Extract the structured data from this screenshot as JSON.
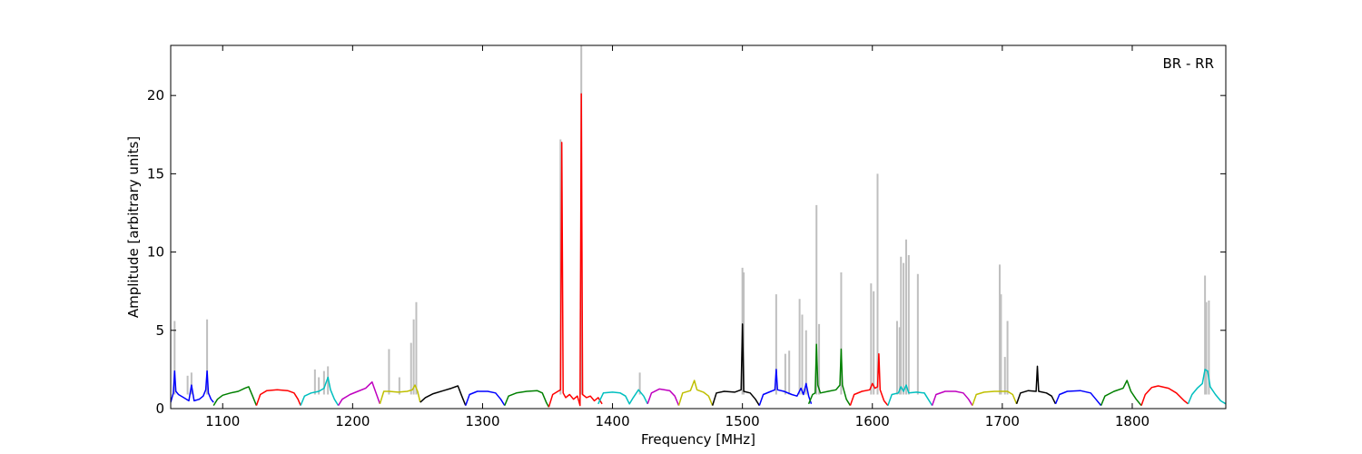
{
  "chart_data": {
    "type": "line",
    "title": "",
    "annotation": "BR - RR",
    "xlabel": "Frequency [MHz]",
    "ylabel": "Amplitude [arbitrary units]",
    "xlim": [
      1060,
      1872
    ],
    "ylim": [
      0,
      23.2
    ],
    "xticks": [
      1100,
      1200,
      1300,
      1400,
      1500,
      1600,
      1700,
      1800
    ],
    "yticks": [
      0,
      5,
      10,
      15,
      20
    ],
    "grid": false,
    "legend": "none",
    "background": {
      "name": "raw",
      "color": "#bfbfbf",
      "spikes": [
        [
          1063,
          5.6
        ],
        [
          1073,
          2.1
        ],
        [
          1076,
          2.3
        ],
        [
          1088,
          5.7
        ],
        [
          1171,
          2.5
        ],
        [
          1174,
          2.0
        ],
        [
          1178,
          2.4
        ],
        [
          1181,
          2.7
        ],
        [
          1228,
          3.8
        ],
        [
          1236,
          2.0
        ],
        [
          1245,
          4.2
        ],
        [
          1247,
          5.7
        ],
        [
          1249,
          6.8
        ],
        [
          1360,
          17.2
        ],
        [
          1376,
          23.2
        ],
        [
          1421,
          2.3
        ],
        [
          1500,
          9.0
        ],
        [
          1501,
          8.7
        ],
        [
          1526,
          7.3
        ],
        [
          1533,
          3.5
        ],
        [
          1536,
          3.7
        ],
        [
          1544,
          7.0
        ],
        [
          1546,
          6.0
        ],
        [
          1549,
          5.0
        ],
        [
          1557,
          13.0
        ],
        [
          1559,
          5.4
        ],
        [
          1576,
          8.7
        ],
        [
          1599,
          8.0
        ],
        [
          1601,
          7.5
        ],
        [
          1604,
          15.0
        ],
        [
          1619,
          5.6
        ],
        [
          1621,
          5.2
        ],
        [
          1622,
          9.7
        ],
        [
          1624,
          9.3
        ],
        [
          1626,
          10.8
        ],
        [
          1628,
          9.8
        ],
        [
          1635,
          8.6
        ],
        [
          1698,
          9.2
        ],
        [
          1699,
          7.3
        ],
        [
          1702,
          3.3
        ],
        [
          1704,
          5.6
        ],
        [
          1856,
          8.5
        ],
        [
          1857,
          6.8
        ],
        [
          1859,
          6.9
        ]
      ]
    },
    "series": [
      {
        "color": "#0000ff",
        "values": [
          [
            1060,
            0.4
          ],
          [
            1062,
            1.0
          ],
          [
            1063,
            2.4
          ],
          [
            1064,
            1.1
          ],
          [
            1066,
            0.9
          ],
          [
            1070,
            0.7
          ],
          [
            1074,
            0.5
          ],
          [
            1076,
            1.5
          ],
          [
            1078,
            0.5
          ],
          [
            1082,
            0.6
          ],
          [
            1085,
            0.8
          ],
          [
            1087,
            1.2
          ],
          [
            1088,
            2.4
          ],
          [
            1089,
            1.0
          ],
          [
            1091,
            0.6
          ],
          [
            1093,
            0.4
          ]
        ]
      },
      {
        "color": "#008000",
        "values": [
          [
            1093,
            0.2
          ],
          [
            1096,
            0.6
          ],
          [
            1100,
            0.85
          ],
          [
            1106,
            1.0
          ],
          [
            1112,
            1.1
          ],
          [
            1117,
            1.3
          ],
          [
            1120,
            1.4
          ],
          [
            1123,
            0.8
          ],
          [
            1126,
            0.2
          ]
        ]
      },
      {
        "color": "#ff0000",
        "values": [
          [
            1126,
            0.2
          ],
          [
            1129,
            0.9
          ],
          [
            1134,
            1.15
          ],
          [
            1142,
            1.2
          ],
          [
            1150,
            1.15
          ],
          [
            1155,
            1.0
          ],
          [
            1158,
            0.6
          ],
          [
            1160,
            0.2
          ]
        ]
      },
      {
        "color": "#00bfbf",
        "values": [
          [
            1160,
            0.2
          ],
          [
            1163,
            0.8
          ],
          [
            1168,
            1.0
          ],
          [
            1174,
            1.1
          ],
          [
            1178,
            1.3
          ],
          [
            1181,
            2.0
          ],
          [
            1183,
            1.2
          ],
          [
            1186,
            0.6
          ],
          [
            1189,
            0.2
          ]
        ]
      },
      {
        "color": "#bf00bf",
        "values": [
          [
            1189,
            0.2
          ],
          [
            1192,
            0.6
          ],
          [
            1198,
            0.9
          ],
          [
            1204,
            1.1
          ],
          [
            1210,
            1.3
          ],
          [
            1215,
            1.7
          ],
          [
            1218,
            1.0
          ],
          [
            1221,
            0.3
          ]
        ]
      },
      {
        "color": "#bfbf00",
        "values": [
          [
            1221,
            0.3
          ],
          [
            1224,
            1.1
          ],
          [
            1228,
            1.1
          ],
          [
            1235,
            1.05
          ],
          [
            1242,
            1.1
          ],
          [
            1246,
            1.2
          ],
          [
            1248,
            1.5
          ],
          [
            1250,
            1.1
          ],
          [
            1252,
            0.4
          ]
        ]
      },
      {
        "color": "#000000",
        "values": [
          [
            1252,
            0.4
          ],
          [
            1256,
            0.7
          ],
          [
            1262,
            0.95
          ],
          [
            1270,
            1.15
          ],
          [
            1276,
            1.3
          ],
          [
            1281,
            1.45
          ],
          [
            1284,
            0.8
          ],
          [
            1287,
            0.2
          ]
        ]
      },
      {
        "color": "#0000ff",
        "values": [
          [
            1287,
            0.2
          ],
          [
            1290,
            0.9
          ],
          [
            1296,
            1.1
          ],
          [
            1304,
            1.1
          ],
          [
            1310,
            1.0
          ],
          [
            1314,
            0.6
          ],
          [
            1317,
            0.2
          ]
        ]
      },
      {
        "color": "#008000",
        "values": [
          [
            1317,
            0.2
          ],
          [
            1320,
            0.8
          ],
          [
            1326,
            1.0
          ],
          [
            1334,
            1.1
          ],
          [
            1342,
            1.15
          ],
          [
            1346,
            1.0
          ],
          [
            1349,
            0.4
          ],
          [
            1351,
            0.1
          ]
        ]
      },
      {
        "color": "#ff0000",
        "values": [
          [
            1351,
            0.1
          ],
          [
            1354,
            0.9
          ],
          [
            1358,
            1.1
          ],
          [
            1360,
            1.2
          ],
          [
            1361,
            17.0
          ],
          [
            1362,
            1.0
          ],
          [
            1364,
            0.7
          ],
          [
            1367,
            0.9
          ],
          [
            1370,
            0.6
          ],
          [
            1373,
            0.8
          ],
          [
            1375,
            0.2
          ],
          [
            1376,
            20.1
          ],
          [
            1377,
            0.9
          ],
          [
            1380,
            0.7
          ],
          [
            1383,
            0.8
          ],
          [
            1386,
            0.5
          ],
          [
            1389,
            0.7
          ],
          [
            1392,
            0.3
          ]
        ]
      },
      {
        "color": "#00bfbf",
        "values": [
          [
            1389,
            0.3
          ],
          [
            1393,
            1.0
          ],
          [
            1400,
            1.05
          ],
          [
            1406,
            1.0
          ],
          [
            1410,
            0.8
          ],
          [
            1413,
            0.3
          ],
          [
            1416,
            0.7
          ],
          [
            1420,
            1.2
          ],
          [
            1424,
            0.8
          ],
          [
            1427,
            0.3
          ]
        ]
      },
      {
        "color": "#bf00bf",
        "values": [
          [
            1427,
            0.3
          ],
          [
            1430,
            1.0
          ],
          [
            1436,
            1.25
          ],
          [
            1444,
            1.15
          ],
          [
            1448,
            0.8
          ],
          [
            1451,
            0.2
          ]
        ]
      },
      {
        "color": "#bfbf00",
        "values": [
          [
            1451,
            0.2
          ],
          [
            1454,
            1.0
          ],
          [
            1460,
            1.15
          ],
          [
            1463,
            1.8
          ],
          [
            1465,
            1.2
          ],
          [
            1470,
            1.05
          ],
          [
            1474,
            0.8
          ],
          [
            1477,
            0.2
          ]
        ]
      },
      {
        "color": "#000000",
        "values": [
          [
            1477,
            0.2
          ],
          [
            1480,
            1.0
          ],
          [
            1486,
            1.1
          ],
          [
            1494,
            1.05
          ],
          [
            1499,
            1.2
          ],
          [
            1500,
            5.4
          ],
          [
            1501,
            1.1
          ],
          [
            1506,
            1.0
          ],
          [
            1510,
            0.6
          ],
          [
            1513,
            0.2
          ]
        ]
      },
      {
        "color": "#0000ff",
        "values": [
          [
            1513,
            0.2
          ],
          [
            1516,
            0.9
          ],
          [
            1522,
            1.1
          ],
          [
            1525,
            1.2
          ],
          [
            1526,
            2.5
          ],
          [
            1527,
            1.2
          ],
          [
            1532,
            1.1
          ],
          [
            1538,
            0.9
          ],
          [
            1542,
            0.8
          ],
          [
            1545,
            1.3
          ],
          [
            1547,
            0.9
          ],
          [
            1549,
            1.6
          ],
          [
            1551,
            0.8
          ],
          [
            1553,
            0.3
          ]
        ]
      },
      {
        "color": "#008000",
        "values": [
          [
            1551,
            0.3
          ],
          [
            1554,
            0.9
          ],
          [
            1556,
            1.0
          ],
          [
            1557,
            4.1
          ],
          [
            1558,
            1.5
          ],
          [
            1560,
            1.0
          ],
          [
            1566,
            1.1
          ],
          [
            1572,
            1.2
          ],
          [
            1575,
            1.5
          ],
          [
            1576,
            3.8
          ],
          [
            1577,
            1.5
          ],
          [
            1580,
            0.6
          ],
          [
            1583,
            0.2
          ]
        ]
      },
      {
        "color": "#ff0000",
        "values": [
          [
            1583,
            0.2
          ],
          [
            1586,
            0.9
          ],
          [
            1592,
            1.1
          ],
          [
            1598,
            1.2
          ],
          [
            1600,
            1.6
          ],
          [
            1602,
            1.3
          ],
          [
            1604,
            1.4
          ],
          [
            1605,
            3.5
          ],
          [
            1606,
            1.2
          ],
          [
            1609,
            0.5
          ],
          [
            1612,
            0.2
          ]
        ]
      },
      {
        "color": "#00bfbf",
        "values": [
          [
            1612,
            0.2
          ],
          [
            1615,
            0.9
          ],
          [
            1620,
            1.0
          ],
          [
            1622,
            1.4
          ],
          [
            1624,
            1.1
          ],
          [
            1626,
            1.5
          ],
          [
            1628,
            1.0
          ],
          [
            1634,
            1.05
          ],
          [
            1640,
            1.0
          ],
          [
            1643,
            0.6
          ],
          [
            1646,
            0.2
          ]
        ]
      },
      {
        "color": "#bf00bf",
        "values": [
          [
            1646,
            0.2
          ],
          [
            1649,
            0.9
          ],
          [
            1656,
            1.1
          ],
          [
            1664,
            1.1
          ],
          [
            1670,
            1.0
          ],
          [
            1674,
            0.6
          ],
          [
            1677,
            0.2
          ]
        ]
      },
      {
        "color": "#bfbf00",
        "values": [
          [
            1677,
            0.2
          ],
          [
            1680,
            0.9
          ],
          [
            1686,
            1.05
          ],
          [
            1694,
            1.1
          ],
          [
            1699,
            1.1
          ],
          [
            1704,
            1.1
          ],
          [
            1708,
            0.9
          ],
          [
            1711,
            0.3
          ]
        ]
      },
      {
        "color": "#000000",
        "values": [
          [
            1711,
            0.3
          ],
          [
            1714,
            1.0
          ],
          [
            1720,
            1.15
          ],
          [
            1726,
            1.1
          ],
          [
            1727,
            2.7
          ],
          [
            1728,
            1.1
          ],
          [
            1734,
            1.0
          ],
          [
            1738,
            0.8
          ],
          [
            1741,
            0.3
          ]
        ]
      },
      {
        "color": "#0000ff",
        "values": [
          [
            1741,
            0.3
          ],
          [
            1744,
            0.9
          ],
          [
            1750,
            1.1
          ],
          [
            1760,
            1.15
          ],
          [
            1768,
            1.0
          ],
          [
            1772,
            0.6
          ],
          [
            1776,
            0.2
          ]
        ]
      },
      {
        "color": "#008000",
        "values": [
          [
            1776,
            0.2
          ],
          [
            1779,
            0.8
          ],
          [
            1786,
            1.1
          ],
          [
            1793,
            1.3
          ],
          [
            1796,
            1.8
          ],
          [
            1799,
            1.1
          ],
          [
            1803,
            0.6
          ],
          [
            1807,
            0.2
          ]
        ]
      },
      {
        "color": "#ff0000",
        "values": [
          [
            1807,
            0.2
          ],
          [
            1810,
            0.9
          ],
          [
            1815,
            1.35
          ],
          [
            1820,
            1.45
          ],
          [
            1828,
            1.3
          ],
          [
            1834,
            1.0
          ],
          [
            1840,
            0.5
          ],
          [
            1843,
            0.3
          ]
        ]
      },
      {
        "color": "#00bfbf",
        "values": [
          [
            1843,
            0.3
          ],
          [
            1846,
            0.9
          ],
          [
            1850,
            1.3
          ],
          [
            1854,
            1.6
          ],
          [
            1856,
            2.5
          ],
          [
            1858,
            2.4
          ],
          [
            1860,
            1.4
          ],
          [
            1864,
            0.9
          ],
          [
            1868,
            0.5
          ],
          [
            1872,
            0.3
          ]
        ]
      }
    ]
  }
}
